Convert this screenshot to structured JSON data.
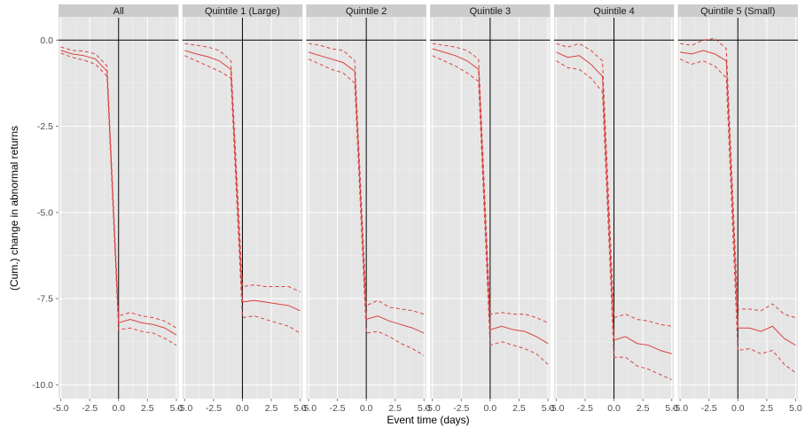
{
  "chart_data": {
    "type": "line",
    "xlabel": "Event time (days)",
    "ylabel": "(Cum.) change in abnormal returns",
    "xlim": [
      -5.2,
      5.2
    ],
    "ylim": [
      -10.4,
      0.65
    ],
    "x_ticks": [
      -5.0,
      -2.5,
      0.0,
      2.5,
      5.0
    ],
    "x_tick_labels": [
      "-5.0",
      "-2.5",
      "0.0",
      "2.5",
      "5.0"
    ],
    "y_ticks": [
      0.0,
      -2.5,
      -5.0,
      -7.5,
      -10.0
    ],
    "y_tick_labels": [
      "0.0",
      "-2.5",
      "-5.0",
      "-7.5",
      "-10.0"
    ],
    "grid": true,
    "reference_lines": {
      "x": 0,
      "y": 0
    },
    "colors": {
      "panel_bg": "#e5e5e5",
      "strip_bg": "#cccccc",
      "grid": "#ffffff",
      "line": "#d9423e",
      "reference": "#000000"
    },
    "x": [
      -5,
      -4,
      -3,
      -2,
      -1,
      0,
      1,
      2,
      3,
      4,
      5
    ],
    "panels": [
      {
        "label": "All",
        "series": [
          {
            "style": "solid",
            "values": [
              -0.3,
              -0.4,
              -0.45,
              -0.55,
              -0.9,
              -8.2,
              -8.1,
              -8.2,
              -8.25,
              -8.35,
              -8.55
            ]
          },
          {
            "style": "dashed",
            "values": [
              -0.2,
              -0.3,
              -0.32,
              -0.4,
              -0.75,
              -8.0,
              -7.9,
              -8.0,
              -8.05,
              -8.15,
              -8.35
            ]
          },
          {
            "style": "dashed",
            "values": [
              -0.38,
              -0.5,
              -0.58,
              -0.7,
              -1.05,
              -8.4,
              -8.35,
              -8.45,
              -8.5,
              -8.65,
              -8.85
            ]
          }
        ]
      },
      {
        "label": "Quintile 1 (Large)",
        "series": [
          {
            "style": "solid",
            "values": [
              -0.3,
              -0.4,
              -0.48,
              -0.6,
              -0.85,
              -7.6,
              -7.55,
              -7.6,
              -7.65,
              -7.7,
              -7.85
            ]
          },
          {
            "style": "dashed",
            "values": [
              -0.1,
              -0.15,
              -0.2,
              -0.3,
              -0.6,
              -7.15,
              -7.1,
              -7.15,
              -7.15,
              -7.15,
              -7.3
            ]
          },
          {
            "style": "dashed",
            "values": [
              -0.45,
              -0.6,
              -0.75,
              -0.9,
              -1.1,
              -8.05,
              -8.0,
              -8.1,
              -8.2,
              -8.3,
              -8.5
            ]
          }
        ]
      },
      {
        "label": "Quintile 2",
        "series": [
          {
            "style": "solid",
            "values": [
              -0.35,
              -0.45,
              -0.55,
              -0.65,
              -0.9,
              -8.1,
              -8.0,
              -8.15,
              -8.25,
              -8.35,
              -8.5
            ]
          },
          {
            "style": "dashed",
            "values": [
              -0.1,
              -0.15,
              -0.25,
              -0.3,
              -0.6,
              -7.7,
              -7.55,
              -7.75,
              -7.8,
              -7.85,
              -7.95
            ]
          },
          {
            "style": "dashed",
            "values": [
              -0.55,
              -0.7,
              -0.85,
              -0.95,
              -1.25,
              -8.5,
              -8.45,
              -8.6,
              -8.8,
              -8.95,
              -9.15
            ]
          }
        ]
      },
      {
        "label": "Quintile 3",
        "series": [
          {
            "style": "solid",
            "values": [
              -0.25,
              -0.35,
              -0.45,
              -0.6,
              -0.85,
              -8.4,
              -8.3,
              -8.4,
              -8.45,
              -8.6,
              -8.8
            ]
          },
          {
            "style": "dashed",
            "values": [
              -0.1,
              -0.15,
              -0.2,
              -0.3,
              -0.55,
              -7.95,
              -7.9,
              -7.95,
              -7.95,
              -8.05,
              -8.2
            ]
          },
          {
            "style": "dashed",
            "values": [
              -0.45,
              -0.6,
              -0.75,
              -0.95,
              -1.2,
              -8.85,
              -8.75,
              -8.85,
              -8.95,
              -9.1,
              -9.4
            ]
          }
        ]
      },
      {
        "label": "Quintile 4",
        "series": [
          {
            "style": "solid",
            "values": [
              -0.35,
              -0.5,
              -0.45,
              -0.7,
              -1.05,
              -8.7,
              -8.6,
              -8.8,
              -8.85,
              -9.0,
              -9.1
            ]
          },
          {
            "style": "dashed",
            "values": [
              -0.1,
              -0.2,
              -0.1,
              -0.3,
              -0.6,
              -8.05,
              -7.95,
              -8.1,
              -8.15,
              -8.25,
              -8.3
            ]
          },
          {
            "style": "dashed",
            "values": [
              -0.6,
              -0.8,
              -0.85,
              -1.1,
              -1.5,
              -9.2,
              -9.2,
              -9.45,
              -9.55,
              -9.7,
              -9.85
            ]
          }
        ]
      },
      {
        "label": "Quintile 5 (Small)",
        "series": [
          {
            "style": "solid",
            "values": [
              -0.35,
              -0.4,
              -0.3,
              -0.4,
              -0.6,
              -8.35,
              -8.35,
              -8.45,
              -8.3,
              -8.65,
              -8.85
            ]
          },
          {
            "style": "dashed",
            "values": [
              -0.1,
              -0.15,
              -0.0,
              0.05,
              -0.25,
              -7.8,
              -7.8,
              -7.85,
              -7.65,
              -7.95,
              -8.05
            ]
          },
          {
            "style": "dashed",
            "values": [
              -0.55,
              -0.7,
              -0.6,
              -0.75,
              -1.1,
              -9.0,
              -8.95,
              -9.1,
              -9.0,
              -9.4,
              -9.65
            ]
          }
        ]
      }
    ]
  }
}
